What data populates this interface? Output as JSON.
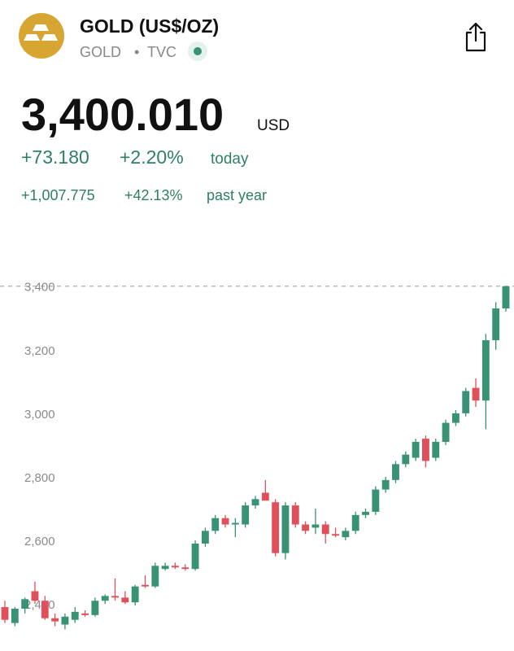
{
  "header": {
    "title": "GOLD (US$/OZ)",
    "symbol": "GOLD",
    "separator": "•",
    "exchange": "TVC"
  },
  "quote": {
    "price": "3,400.010",
    "currency": "USD",
    "change": "+73.180",
    "change_pct": "+2.20%",
    "change_period": "today",
    "year_change": "+1,007.775",
    "year_change_pct": "+42.13%",
    "year_period": "past year"
  },
  "chart_data": {
    "type": "candlestick",
    "up_color": "#3a9275",
    "down_color": "#e0505a",
    "open": [
      2390,
      2340,
      2385,
      2440,
      2410,
      2355,
      2335,
      2350,
      2370,
      2365,
      2410,
      2425,
      2420,
      2405,
      2460,
      2455,
      2510,
      2520,
      2515,
      2510,
      2590,
      2630,
      2670,
      2650,
      2650,
      2710,
      2750,
      2720,
      2560,
      2710,
      2650,
      2640,
      2650,
      2620,
      2610,
      2630,
      2680,
      2690,
      2760,
      2790,
      2840,
      2860,
      2920,
      2860,
      2910,
      2970,
      3000,
      3080,
      3040,
      3230,
      3330
    ],
    "high": [
      2410,
      2390,
      2420,
      2470,
      2425,
      2370,
      2370,
      2390,
      2380,
      2420,
      2430,
      2480,
      2440,
      2460,
      2490,
      2530,
      2530,
      2530,
      2525,
      2600,
      2640,
      2680,
      2680,
      2670,
      2720,
      2740,
      2790,
      2730,
      2720,
      2720,
      2660,
      2700,
      2660,
      2640,
      2640,
      2690,
      2700,
      2770,
      2800,
      2850,
      2880,
      2920,
      2930,
      2920,
      2980,
      3010,
      3080,
      3110,
      3250,
      3350,
      3400
    ],
    "low": [
      2340,
      2330,
      2370,
      2400,
      2350,
      2330,
      2320,
      2340,
      2360,
      2360,
      2400,
      2410,
      2400,
      2395,
      2450,
      2450,
      2505,
      2510,
      2505,
      2505,
      2580,
      2620,
      2640,
      2610,
      2640,
      2700,
      2730,
      2550,
      2540,
      2640,
      2620,
      2620,
      2590,
      2610,
      2600,
      2620,
      2670,
      2680,
      2750,
      2780,
      2830,
      2850,
      2830,
      2850,
      2900,
      2960,
      2990,
      3020,
      2950,
      3200,
      3320
    ],
    "close": [
      2350,
      2385,
      2415,
      2410,
      2355,
      2345,
      2360,
      2375,
      2365,
      2410,
      2425,
      2420,
      2405,
      2455,
      2455,
      2520,
      2520,
      2515,
      2510,
      2590,
      2630,
      2670,
      2650,
      2655,
      2710,
      2730,
      2725,
      2560,
      2710,
      2650,
      2630,
      2650,
      2620,
      2615,
      2630,
      2680,
      2690,
      2760,
      2790,
      2840,
      2870,
      2910,
      2850,
      2910,
      2970,
      3000,
      3070,
      3040,
      3230,
      3330,
      3400
    ],
    "ylim": [
      2280,
      3430
    ],
    "yticks": [
      {
        "value": 3400,
        "label": "3,400"
      },
      {
        "value": 3200,
        "label": "3,200"
      },
      {
        "value": 3000,
        "label": "3,000"
      },
      {
        "value": 2800,
        "label": "2,800"
      },
      {
        "value": 2600,
        "label": "2,600"
      },
      {
        "value": 2400,
        "label": "2,400"
      }
    ]
  }
}
